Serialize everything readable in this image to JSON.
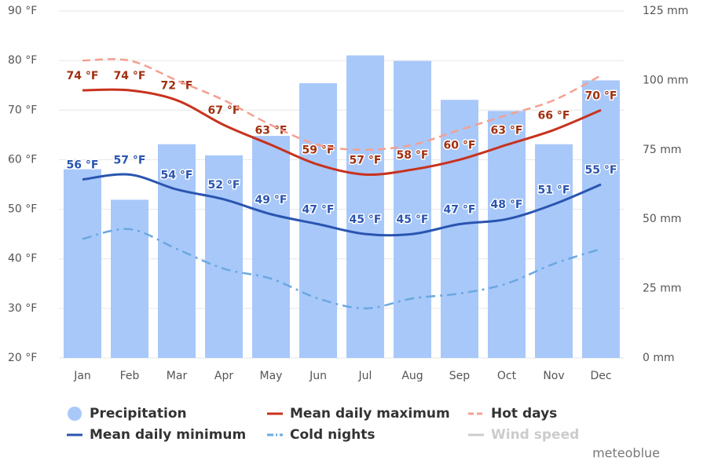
{
  "chart_data": {
    "type": "combo",
    "categories": [
      "Jan",
      "Feb",
      "Mar",
      "Apr",
      "May",
      "Jun",
      "Jul",
      "Aug",
      "Sep",
      "Oct",
      "Nov",
      "Dec"
    ],
    "ylim": [
      20,
      90
    ],
    "yticks": [
      {
        "value": 20,
        "label": "20 °F"
      },
      {
        "value": 30,
        "label": "30 °F"
      },
      {
        "value": 40,
        "label": "40 °F"
      },
      {
        "value": 50,
        "label": "50 °F"
      },
      {
        "value": 60,
        "label": "60 °F"
      },
      {
        "value": 70,
        "label": "70 °F"
      },
      {
        "value": 80,
        "label": "80 °F"
      },
      {
        "value": 90,
        "label": "90 °F"
      }
    ],
    "y2lim": [
      0,
      125
    ],
    "y2ticks": [
      {
        "value": 0,
        "label": "0 mm"
      },
      {
        "value": 25,
        "label": "25 mm"
      },
      {
        "value": 50,
        "label": "50 mm"
      },
      {
        "value": 75,
        "label": "75 mm"
      },
      {
        "value": 100,
        "label": "100 mm"
      },
      {
        "value": 125,
        "label": "125 mm"
      }
    ],
    "grid": true,
    "series": [
      {
        "name": "Precipitation",
        "type": "bar",
        "axis": "y2",
        "color": "#a8c8fa",
        "values": [
          68,
          57,
          77,
          73,
          80,
          99,
          109,
          107,
          93,
          89,
          77,
          100
        ]
      },
      {
        "name": "Mean daily maximum",
        "type": "line",
        "color": "#c8321e",
        "label_color": "#a0300f",
        "values": [
          74,
          74,
          72,
          67,
          63,
          59,
          57,
          58,
          60,
          63,
          66,
          70
        ],
        "value_labels": [
          "74 °F",
          "74 °F",
          "72 °F",
          "67 °F",
          "63 °F",
          "59 °F",
          "57 °F",
          "58 °F",
          "60 °F",
          "63 °F",
          "66 °F",
          "70 °F"
        ]
      },
      {
        "name": "Hot days",
        "type": "line",
        "dash": "dash",
        "color": "#f4a090",
        "values": [
          80,
          80,
          76,
          72,
          67,
          63,
          62,
          63,
          66,
          69,
          72,
          77
        ]
      },
      {
        "name": "Mean daily minimum",
        "type": "line",
        "color": "#2a55b0",
        "label_color": "#2a55b0",
        "values": [
          56,
          57,
          54,
          52,
          49,
          47,
          45,
          45,
          47,
          48,
          51,
          55
        ],
        "value_labels": [
          "56 °F",
          "57 °F",
          "54 °F",
          "52 °F",
          "49 °F",
          "47 °F",
          "45 °F",
          "45 °F",
          "47 °F",
          "48 °F",
          "51 °F",
          "55 °F"
        ]
      },
      {
        "name": "Cold nights",
        "type": "line",
        "dash": "dashdot",
        "color": "#6aa8e0",
        "values": [
          44,
          46,
          42,
          38,
          36,
          32,
          30,
          32,
          33,
          35,
          39,
          42
        ]
      },
      {
        "name": "Wind speed",
        "type": "line",
        "color": "#cccccc",
        "visible": false
      }
    ],
    "credit": "meteoblue"
  }
}
